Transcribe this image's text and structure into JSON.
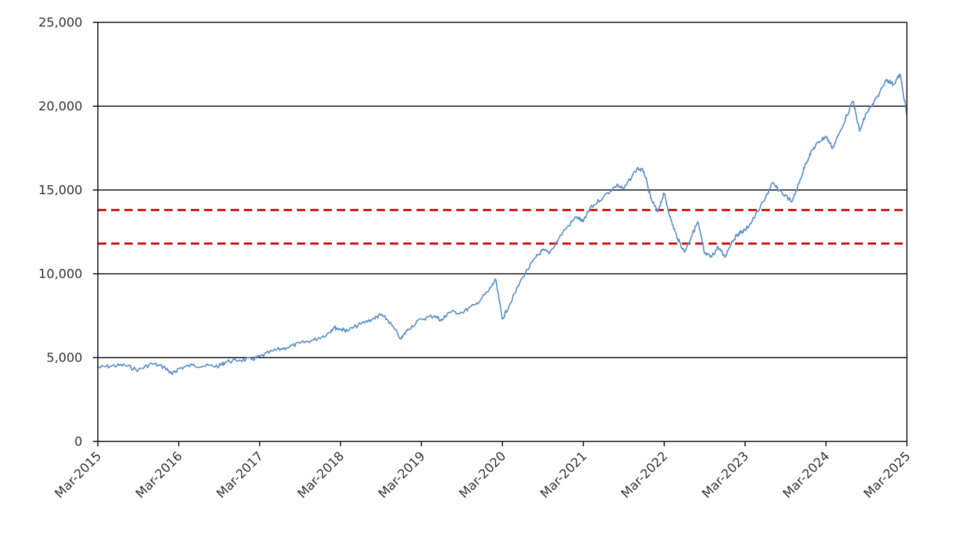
{
  "chart_data": {
    "type": "line",
    "title": "",
    "xlabel": "",
    "ylabel": "",
    "ylim": [
      0,
      25000
    ],
    "xlim": [
      "2015-03",
      "2025-03"
    ],
    "y_ticks": [
      0,
      5000,
      10000,
      15000,
      20000,
      25000
    ],
    "y_tick_labels": [
      "0",
      "5,000",
      "10,000",
      "15,000",
      "20,000",
      "25,000"
    ],
    "x_ticks": [
      "2015-03",
      "2016-03",
      "2017-03",
      "2018-03",
      "2019-03",
      "2020-03",
      "2021-03",
      "2022-03",
      "2023-03",
      "2024-03",
      "2025-03"
    ],
    "x_tick_labels": [
      "Mar-2015",
      "Mar-2016",
      "Mar-2017",
      "Mar-2018",
      "Mar-2019",
      "Mar-2020",
      "Mar-2021",
      "Mar-2022",
      "Mar-2023",
      "Mar-2024",
      "Mar-2025"
    ],
    "grid": true,
    "legend": "none",
    "series": [
      {
        "color": "#5b8fc9",
        "points": [
          [
            "2015-03",
            4400
          ],
          [
            "2015-05",
            4500
          ],
          [
            "2015-07",
            4550
          ],
          [
            "2015-09",
            4250
          ],
          [
            "2015-11",
            4650
          ],
          [
            "2016-01",
            4400
          ],
          [
            "2016-02",
            4000
          ],
          [
            "2016-03",
            4350
          ],
          [
            "2016-05",
            4550
          ],
          [
            "2016-07",
            4500
          ],
          [
            "2016-09",
            4500
          ],
          [
            "2016-10",
            4750
          ],
          [
            "2016-12",
            4850
          ],
          [
            "2017-02",
            4900
          ],
          [
            "2017-03",
            5050
          ],
          [
            "2017-05",
            5400
          ],
          [
            "2017-07",
            5600
          ],
          [
            "2017-09",
            5850
          ],
          [
            "2017-11",
            6050
          ],
          [
            "2018-01",
            6400
          ],
          [
            "2018-02",
            6800
          ],
          [
            "2018-03",
            6700
          ],
          [
            "2018-04",
            6600
          ],
          [
            "2018-06",
            7000
          ],
          [
            "2018-08",
            7350
          ],
          [
            "2018-09",
            7550
          ],
          [
            "2018-10",
            7250
          ],
          [
            "2018-12",
            6100
          ],
          [
            "2019-01",
            6700
          ],
          [
            "2019-03",
            7300
          ],
          [
            "2019-05",
            7500
          ],
          [
            "2019-06",
            7200
          ],
          [
            "2019-07",
            7700
          ],
          [
            "2019-09",
            7700
          ],
          [
            "2019-11",
            8150
          ],
          [
            "2020-01",
            9000
          ],
          [
            "2020-02",
            9650
          ],
          [
            "2020-03",
            7300
          ],
          [
            "2020-04",
            8100
          ],
          [
            "2020-06",
            9800
          ],
          [
            "2020-08",
            11000
          ],
          [
            "2020-09",
            11400
          ],
          [
            "2020-10",
            11250
          ],
          [
            "2020-12",
            12500
          ],
          [
            "2021-02",
            13400
          ],
          [
            "2021-03",
            13100
          ],
          [
            "2021-04",
            13900
          ],
          [
            "2021-06",
            14600
          ],
          [
            "2021-08",
            15300
          ],
          [
            "2021-09",
            15050
          ],
          [
            "2021-11",
            16300
          ],
          [
            "2021-12",
            16100
          ],
          [
            "2022-01",
            14500
          ],
          [
            "2022-02",
            13700
          ],
          [
            "2022-03",
            14800
          ],
          [
            "2022-04",
            13200
          ],
          [
            "2022-05",
            12100
          ],
          [
            "2022-06",
            11300
          ],
          [
            "2022-07",
            12200
          ],
          [
            "2022-08",
            13100
          ],
          [
            "2022-09",
            11200
          ],
          [
            "2022-10",
            11000
          ],
          [
            "2022-11",
            11600
          ],
          [
            "2022-12",
            11000
          ],
          [
            "2023-01",
            11900
          ],
          [
            "2023-02",
            12400
          ],
          [
            "2023-03",
            12600
          ],
          [
            "2023-04",
            13100
          ],
          [
            "2023-06",
            14500
          ],
          [
            "2023-07",
            15400
          ],
          [
            "2023-08",
            15000
          ],
          [
            "2023-10",
            14300
          ],
          [
            "2023-11",
            15400
          ],
          [
            "2023-12",
            16600
          ],
          [
            "2024-01",
            17400
          ],
          [
            "2024-02",
            17900
          ],
          [
            "2024-03",
            18200
          ],
          [
            "2024-04",
            17500
          ],
          [
            "2024-05",
            18400
          ],
          [
            "2024-07",
            20300
          ],
          [
            "2024-08",
            18500
          ],
          [
            "2024-09",
            19600
          ],
          [
            "2024-10",
            20100
          ],
          [
            "2024-12",
            21600
          ],
          [
            "2025-01",
            21300
          ],
          [
            "2025-02",
            21900
          ],
          [
            "2025-03",
            19500
          ]
        ]
      }
    ],
    "reference_lines": [
      {
        "y": 13800,
        "color": "#cc0000",
        "style": "dashed"
      },
      {
        "y": 11800,
        "color": "#cc0000",
        "style": "dashed"
      }
    ]
  }
}
